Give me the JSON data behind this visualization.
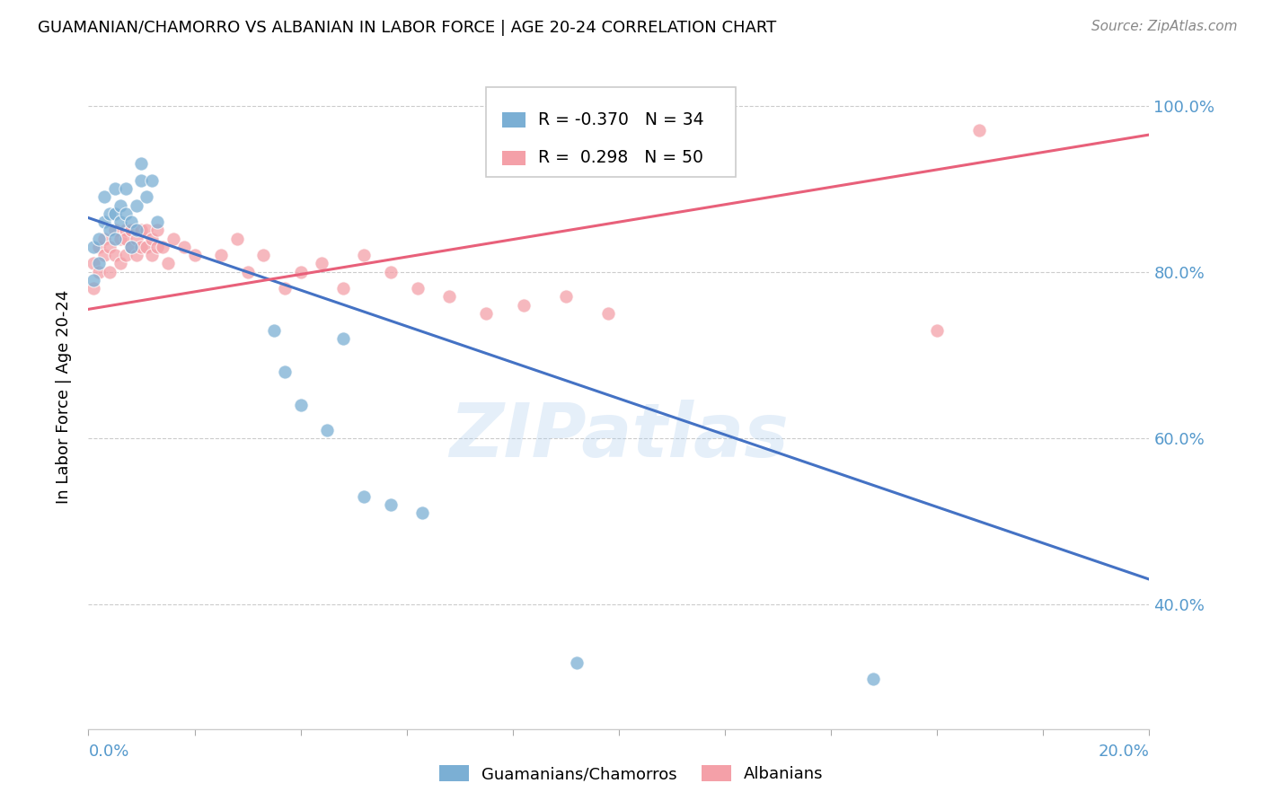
{
  "title": "GUAMANIAN/CHAMORRO VS ALBANIAN IN LABOR FORCE | AGE 20-24 CORRELATION CHART",
  "source": "Source: ZipAtlas.com",
  "ylabel": "In Labor Force | Age 20-24",
  "legend_blue_r": "-0.370",
  "legend_blue_n": "34",
  "legend_pink_r": "0.298",
  "legend_pink_n": "50",
  "legend_blue_label": "Guamanians/Chamorros",
  "legend_pink_label": "Albanians",
  "blue_color": "#7BAFD4",
  "pink_color": "#F4A0A8",
  "blue_line_color": "#4472C4",
  "pink_line_color": "#E8607A",
  "watermark": "ZIPatlas",
  "blue_scatter_x": [
    0.001,
    0.001,
    0.002,
    0.002,
    0.003,
    0.003,
    0.004,
    0.004,
    0.005,
    0.005,
    0.005,
    0.006,
    0.006,
    0.007,
    0.007,
    0.008,
    0.008,
    0.009,
    0.009,
    0.01,
    0.01,
    0.011,
    0.012,
    0.013,
    0.035,
    0.037,
    0.04,
    0.045,
    0.048,
    0.052,
    0.057,
    0.063,
    0.092,
    0.148
  ],
  "blue_scatter_y": [
    0.83,
    0.79,
    0.84,
    0.81,
    0.86,
    0.89,
    0.87,
    0.85,
    0.9,
    0.87,
    0.84,
    0.88,
    0.86,
    0.9,
    0.87,
    0.86,
    0.83,
    0.88,
    0.85,
    0.91,
    0.93,
    0.89,
    0.91,
    0.86,
    0.73,
    0.68,
    0.64,
    0.61,
    0.72,
    0.53,
    0.52,
    0.51,
    0.33,
    0.31
  ],
  "pink_scatter_x": [
    0.001,
    0.001,
    0.002,
    0.002,
    0.003,
    0.003,
    0.004,
    0.004,
    0.005,
    0.005,
    0.006,
    0.006,
    0.007,
    0.007,
    0.007,
    0.008,
    0.008,
    0.009,
    0.009,
    0.01,
    0.01,
    0.011,
    0.011,
    0.012,
    0.012,
    0.013,
    0.013,
    0.014,
    0.015,
    0.016,
    0.018,
    0.02,
    0.025,
    0.028,
    0.03,
    0.033,
    0.037,
    0.04,
    0.044,
    0.048,
    0.052,
    0.057,
    0.062,
    0.068,
    0.075,
    0.082,
    0.09,
    0.098,
    0.16,
    0.168
  ],
  "pink_scatter_y": [
    0.78,
    0.81,
    0.8,
    0.83,
    0.82,
    0.84,
    0.8,
    0.83,
    0.82,
    0.85,
    0.84,
    0.81,
    0.85,
    0.82,
    0.84,
    0.83,
    0.85,
    0.84,
    0.82,
    0.83,
    0.85,
    0.83,
    0.85,
    0.84,
    0.82,
    0.83,
    0.85,
    0.83,
    0.81,
    0.84,
    0.83,
    0.82,
    0.82,
    0.84,
    0.8,
    0.82,
    0.78,
    0.8,
    0.81,
    0.78,
    0.82,
    0.8,
    0.78,
    0.77,
    0.75,
    0.76,
    0.77,
    0.75,
    0.73,
    0.97
  ],
  "blue_line_x0": 0.0,
  "blue_line_y0": 0.865,
  "blue_line_x1": 0.2,
  "blue_line_y1": 0.43,
  "pink_line_x0": 0.0,
  "pink_line_y0": 0.755,
  "pink_line_x1": 0.2,
  "pink_line_y1": 0.965,
  "xlim": [
    0.0,
    0.2
  ],
  "ylim": [
    0.25,
    1.05
  ],
  "yticks": [
    0.4,
    0.6,
    0.8,
    1.0
  ],
  "ytick_labels": [
    "40.0%",
    "60.0%",
    "80.0%",
    "100.0%"
  ]
}
